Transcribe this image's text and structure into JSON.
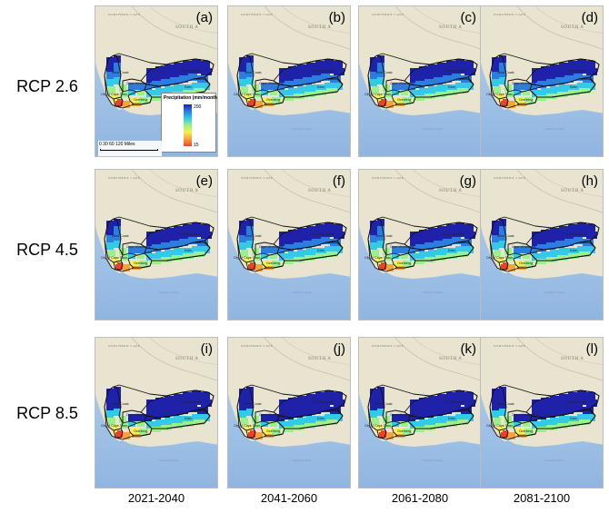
{
  "rows": [
    {
      "label": "RCP 2.6",
      "panels": [
        "(a)",
        "(b)",
        "(c)",
        "(d)"
      ]
    },
    {
      "label": "RCP 4.5",
      "panels": [
        "(e)",
        "(f)",
        "(g)",
        "(h)"
      ]
    },
    {
      "label": "RCP 8.5",
      "panels": [
        "(i)",
        "(j)",
        "(k)",
        "(l)"
      ]
    }
  ],
  "columns": [
    "2021-2040",
    "2041-2060",
    "2061-2080",
    "2081-2100"
  ],
  "map_labels": {
    "northern_cape": "NORTHERN CAPE",
    "south_africa": "SOUTH A",
    "west_coast": "West Coast",
    "central_karoo": "Central Karoo",
    "cape_winelands": "Cape Winelands",
    "eden": "Eden",
    "overberg": "Overberg",
    "city_of_cape_town": "City of Cape Town",
    "ocean": "Southern Ocean"
  },
  "legend": {
    "title": "Precipitation (mm/month)",
    "max": "200",
    "min": "15",
    "colors": [
      "#1f22a8",
      "#2b7de0",
      "#34c9e6",
      "#9af08a",
      "#f4ef52",
      "#f7a13a",
      "#e8432a"
    ]
  },
  "scale": {
    "text": "0   30  60       120 Miles"
  },
  "colors": {
    "land": "#e9e4cf",
    "sea": "#9ec3e6",
    "boundary": "#111111"
  }
}
